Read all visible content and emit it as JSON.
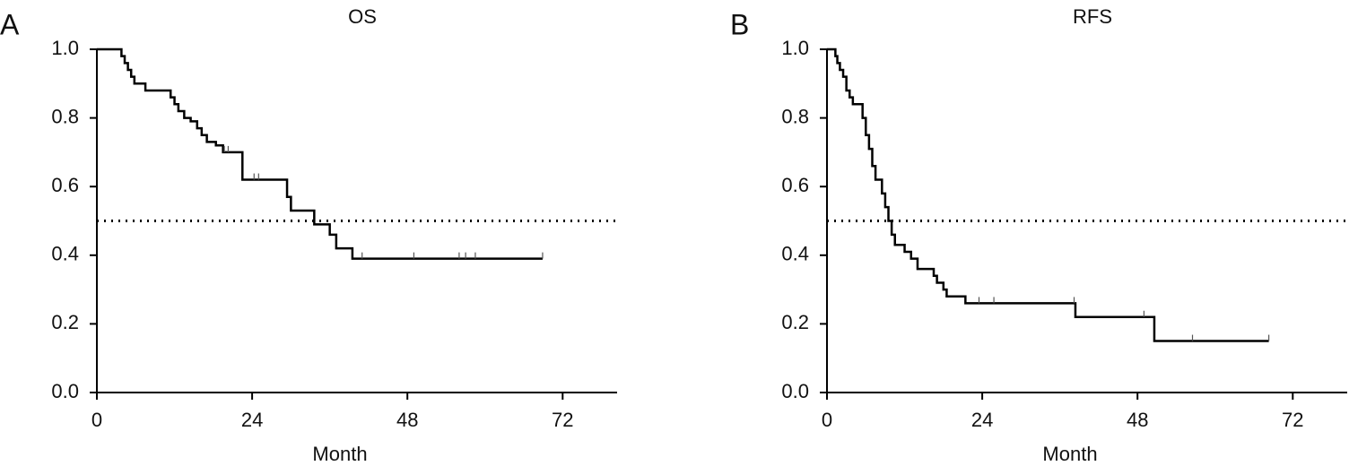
{
  "chart_data": [
    {
      "type": "step",
      "panel_label": "A",
      "title": "OS",
      "xlabel": "Month",
      "color": "#000000",
      "xlim": [
        0,
        80
      ],
      "xticks": [
        0,
        24,
        48,
        72
      ],
      "ylim": [
        0,
        1
      ],
      "yticks": [
        {
          "value": 0,
          "label": "0.0"
        },
        0.2,
        0.4,
        0.6,
        0.8,
        {
          "value": 1,
          "label": "1.0"
        }
      ],
      "reference_line": 0.5,
      "x": [
        0,
        3.8,
        4.3,
        4.8,
        5.3,
        5.8,
        7.5,
        11.4,
        12,
        12.6,
        13.5,
        14.5,
        15.5,
        16.2,
        17,
        18.4,
        19.5,
        22.5,
        29.4,
        30,
        33.6,
        36,
        37,
        39.5,
        68.9
      ],
      "values": [
        1.0,
        0.98,
        0.96,
        0.94,
        0.92,
        0.9,
        0.88,
        0.86,
        0.84,
        0.82,
        0.8,
        0.79,
        0.77,
        0.75,
        0.73,
        0.72,
        0.7,
        0.62,
        0.57,
        0.53,
        0.49,
        0.46,
        0.42,
        0.39,
        0.39
      ],
      "censored": {
        "x": [
          19.7,
          20.3,
          24.3,
          25,
          41,
          49,
          56,
          57,
          58.5,
          68.9
        ],
        "values": [
          0.7,
          0.7,
          0.62,
          0.62,
          0.39,
          0.39,
          0.39,
          0.39,
          0.39,
          0.39
        ]
      }
    },
    {
      "type": "step",
      "panel_label": "B",
      "title": "RFS",
      "xlabel": "Month",
      "color": "#000000",
      "xlim": [
        0,
        80
      ],
      "xticks": [
        0,
        24,
        48,
        72
      ],
      "ylim": [
        0,
        1
      ],
      "yticks": [
        {
          "value": 0,
          "label": "0.0"
        },
        0.2,
        0.4,
        0.6,
        0.8,
        {
          "value": 1,
          "label": "1.0"
        }
      ],
      "reference_line": 0.5,
      "x": [
        0,
        1.3,
        1.6,
        2,
        2.5,
        3,
        3.5,
        4,
        5.5,
        6,
        6.5,
        7,
        7.5,
        8.5,
        9,
        9.5,
        10,
        10.5,
        12,
        13,
        14,
        16.5,
        17,
        18,
        18.5,
        19.2,
        21.4,
        38.4,
        50.6,
        68.3
      ],
      "values": [
        1.0,
        0.98,
        0.96,
        0.94,
        0.92,
        0.88,
        0.86,
        0.84,
        0.8,
        0.75,
        0.71,
        0.66,
        0.62,
        0.58,
        0.54,
        0.5,
        0.46,
        0.43,
        0.41,
        0.39,
        0.36,
        0.34,
        0.32,
        0.3,
        0.28,
        0.28,
        0.26,
        0.22,
        0.15,
        0.15
      ],
      "censored": {
        "x": [
          23.5,
          25.8,
          38.2,
          49,
          56.5,
          68.3
        ],
        "values": [
          0.26,
          0.26,
          0.26,
          0.22,
          0.15,
          0.15
        ]
      }
    }
  ]
}
